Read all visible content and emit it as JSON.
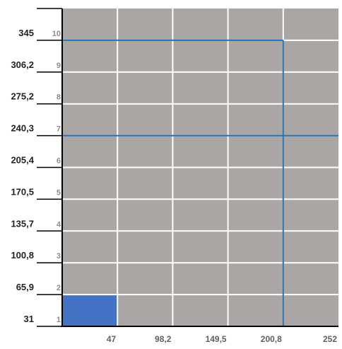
{
  "chart_data": {
    "type": "heatmap",
    "title": "",
    "xlabel": "",
    "ylabel": "",
    "x_ticks": [
      "47",
      "98,2",
      "149,5",
      "200,8",
      "252"
    ],
    "y_ticks": [
      {
        "index": "1",
        "value": "31"
      },
      {
        "index": "2",
        "value": "65,9"
      },
      {
        "index": "3",
        "value": "100,8"
      },
      {
        "index": "4",
        "value": "135,7"
      },
      {
        "index": "5",
        "value": "170,5"
      },
      {
        "index": "6",
        "value": "205,4"
      },
      {
        "index": "7",
        "value": "240,3"
      },
      {
        "index": "8",
        "value": "275,2"
      },
      {
        "index": "9",
        "value": "306,2"
      },
      {
        "index": "10",
        "value": "345"
      }
    ],
    "columns": 5,
    "rows": 10,
    "highlighted_cell": {
      "column": 1,
      "row": 1
    },
    "reference_lines": {
      "vertical_at_column_boundary": 4,
      "horizontal_at_row_boundary": 6,
      "upper_box_top_row_boundary": 9
    },
    "grid": true,
    "colors": {
      "cell": "#aaa6a5",
      "highlight": "#4472c4",
      "grid": "#ffffff",
      "reference": "#1f6fb5",
      "axis": "#000000"
    }
  }
}
